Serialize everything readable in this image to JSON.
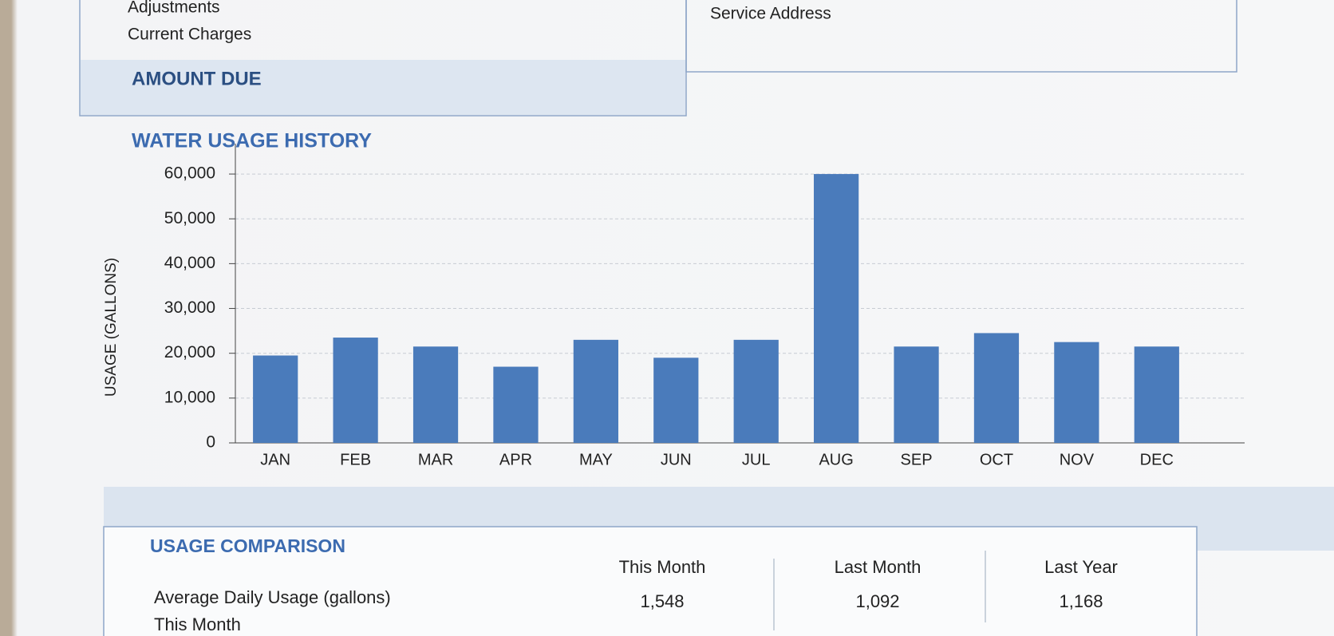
{
  "summary": {
    "rows": [
      "Adjustments",
      "Current Charges"
    ],
    "amount_due": "AMOUNT DUE",
    "service_address": "Service Address"
  },
  "chart_data": {
    "type": "bar",
    "title": "WATER USAGE HISTORY",
    "y_label": "USAGE (GALLONS)",
    "categories": [
      "JAN",
      "FEB",
      "MAR",
      "APR",
      "MAY",
      "JUN",
      "JUL",
      "AUG",
      "SEP",
      "OCT",
      "NOV",
      "DEC"
    ],
    "values": [
      19500,
      23500,
      21500,
      17000,
      23000,
      19000,
      23000,
      60000,
      21500,
      24500,
      22500,
      21500
    ],
    "color": "#4a7bbb",
    "ylim": [
      0,
      65000
    ],
    "yticks": [
      0,
      {
        "value": 10000,
        "label": "10,000"
      },
      {
        "value": 20000,
        "label": "20,000"
      },
      {
        "value": 30000,
        "label": "30,000"
      },
      {
        "value": 40000,
        "label": "40,000"
      },
      {
        "value": 50000,
        "label": "50,000"
      },
      {
        "value": 60000,
        "label": "60,000"
      }
    ],
    "grid": true
  },
  "comparison": {
    "title": "USAGE COMPARISON",
    "row_label": "Average Daily Usage (gallons)",
    "row_sub": "This Month",
    "columns": [
      "This Month",
      "Last Month",
      "Last Year"
    ],
    "values": [
      "1,548",
      "1,092",
      "1,168"
    ]
  }
}
